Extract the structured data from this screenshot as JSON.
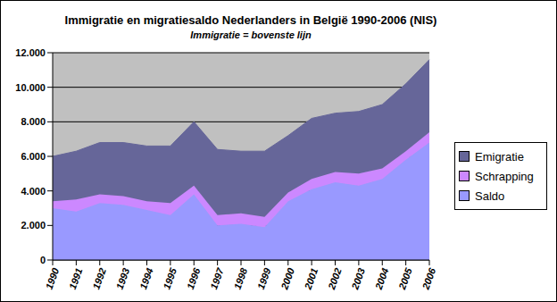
{
  "chart_data": {
    "type": "area",
    "title": "Immigratie en migratiesaldo Nederlanders in België 1990-2006 (NIS)",
    "subtitle": "Immigratie = bovenste lijn",
    "categories": [
      "1990",
      "1991",
      "1992",
      "1993",
      "1994",
      "1995",
      "1996",
      "1997",
      "1998",
      "1999",
      "2000",
      "2001",
      "2002",
      "2003",
      "2004",
      "2005",
      "2006"
    ],
    "series": [
      {
        "name": "Saldo",
        "color": "#9999FF",
        "values": [
          3000,
          2800,
          3300,
          3200,
          2900,
          2600,
          3800,
          2000,
          2100,
          1900,
          3400,
          4100,
          4500,
          4300,
          4700,
          5800,
          6800
        ]
      },
      {
        "name": "Schrapping",
        "color": "#CC88FF",
        "values": [
          400,
          700,
          500,
          500,
          500,
          700,
          500,
          600,
          600,
          600,
          500,
          600,
          600,
          700,
          600,
          500,
          600
        ]
      },
      {
        "name": "Emigratie",
        "color": "#666699",
        "values": [
          2600,
          2800,
          3000,
          3100,
          3200,
          3300,
          3700,
          3800,
          3600,
          3800,
          3300,
          3500,
          3400,
          3600,
          3700,
          3900,
          4200
        ]
      }
    ],
    "ylim": [
      0,
      12000
    ],
    "yticks": [
      0,
      {
        "value": 2000,
        "label": "2.000"
      },
      {
        "value": 4000,
        "label": "4.000"
      },
      {
        "value": 6000,
        "label": "6.000"
      },
      {
        "value": 8000,
        "label": "8.000"
      },
      {
        "value": 10000,
        "label": "10.000"
      },
      {
        "value": 12000,
        "label": "12.000"
      }
    ],
    "grid": true,
    "stacked": true,
    "legend": "right"
  }
}
